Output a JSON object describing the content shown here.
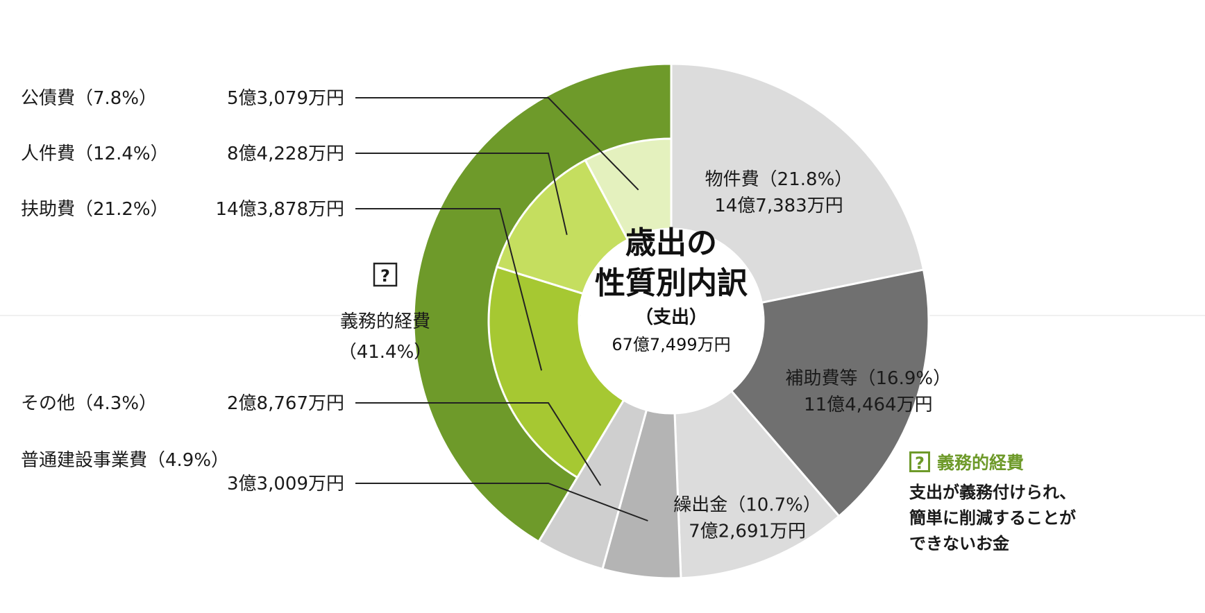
{
  "chart_data": {
    "type": "pie",
    "style": "nested-donut",
    "title": "歳出の\n性質別内訳",
    "subtitle": "（支出）",
    "total": "67億7,499万円",
    "slices": [
      {
        "name": "物件費",
        "percent": 21.8,
        "pct_label": "（21.8%）",
        "amount": "14億7,383万円",
        "color": "#dcdcdc"
      },
      {
        "name": "補助費等",
        "percent": 16.9,
        "pct_label": "（16.9%）",
        "amount": "11億4,464万円",
        "color": "#707070"
      },
      {
        "name": "繰出金",
        "percent": 10.7,
        "pct_label": "（10.7%）",
        "amount": "7億2,691万円",
        "color": "#dcdcdc"
      },
      {
        "name": "普通建設事業費",
        "percent": 4.9,
        "pct_label": "（4.9%）",
        "amount": "3億3,009万円",
        "color": "#b4b4b4"
      },
      {
        "name": "その他",
        "percent": 4.3,
        "pct_label": "（4.3%）",
        "amount": "2億8,767万円",
        "color": "#cfcfcf"
      },
      {
        "name": "扶助費",
        "percent": 21.2,
        "pct_label": "（21.2%）",
        "amount": "14億3,878万円",
        "color": "#a6c832"
      },
      {
        "name": "人件費",
        "percent": 12.4,
        "pct_label": "（12.4%）",
        "amount": "8億4,228万円",
        "color": "#c5de5f"
      },
      {
        "name": "公債費",
        "percent": 7.8,
        "pct_label": "（7.8%）",
        "amount": "5億3,079万円",
        "color": "#e4f1be"
      }
    ],
    "group": {
      "name": "義務的経費",
      "percent": 41.4,
      "pct_label": "（41.4%）",
      "marker": "?",
      "members": [
        "扶助費",
        "人件費",
        "公債費"
      ],
      "color": "#6e9a2a"
    }
  },
  "callout": {
    "marker": "?",
    "title": "義務的経費",
    "text": "支出が義務付けられ、\n簡単に削減することが\nできないお金"
  }
}
